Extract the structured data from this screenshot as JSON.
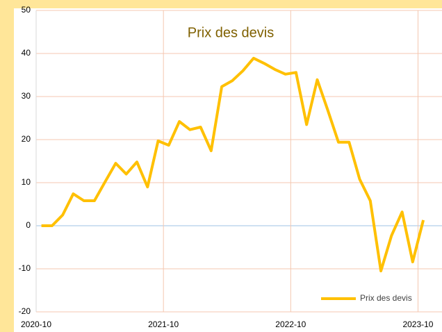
{
  "chart_data": {
    "type": "line",
    "title": "Prix des devis",
    "x": [
      "2020-10",
      "2020-11",
      "2020-12",
      "2021-01",
      "2021-02",
      "2021-03",
      "2021-04",
      "2021-05",
      "2021-06",
      "2021-07",
      "2021-08",
      "2021-09",
      "2021-10",
      "2021-11",
      "2021-12",
      "2022-01",
      "2022-02",
      "2022-03",
      "2022-04",
      "2022-05",
      "2022-06",
      "2022-07",
      "2022-08",
      "2022-09",
      "2022-10",
      "2022-11",
      "2022-12",
      "2023-01",
      "2023-02",
      "2023-03",
      "2023-04",
      "2023-05",
      "2023-06",
      "2023-07",
      "2023-08",
      "2023-09",
      "2023-10"
    ],
    "series": [
      {
        "name": "Prix des devis",
        "color": "#ffc000",
        "values": [
          0,
          0,
          2.5,
          7.4,
          5.8,
          5.8,
          10.2,
          14.5,
          12,
          14.8,
          9,
          19.7,
          18.7,
          24.2,
          22.3,
          22.9,
          17.4,
          32.3,
          33.7,
          36,
          38.9,
          37.7,
          36.3,
          35.2,
          35.6,
          23.5,
          33.9,
          26.8,
          19.4,
          19.4,
          10.8,
          5.8,
          -10.5,
          -2.3,
          3.2,
          -8.4,
          1.3
        ]
      }
    ],
    "xlim": [
      "2020-10",
      "2023-12"
    ],
    "xticks": [
      "2020-10",
      "2021-10",
      "2022-10",
      "2023-10"
    ],
    "ylim": [
      -20,
      50
    ],
    "yticks": [
      -20,
      -10,
      0,
      10,
      20,
      30,
      40,
      50
    ],
    "grid": true,
    "legend": "bottom-right"
  }
}
